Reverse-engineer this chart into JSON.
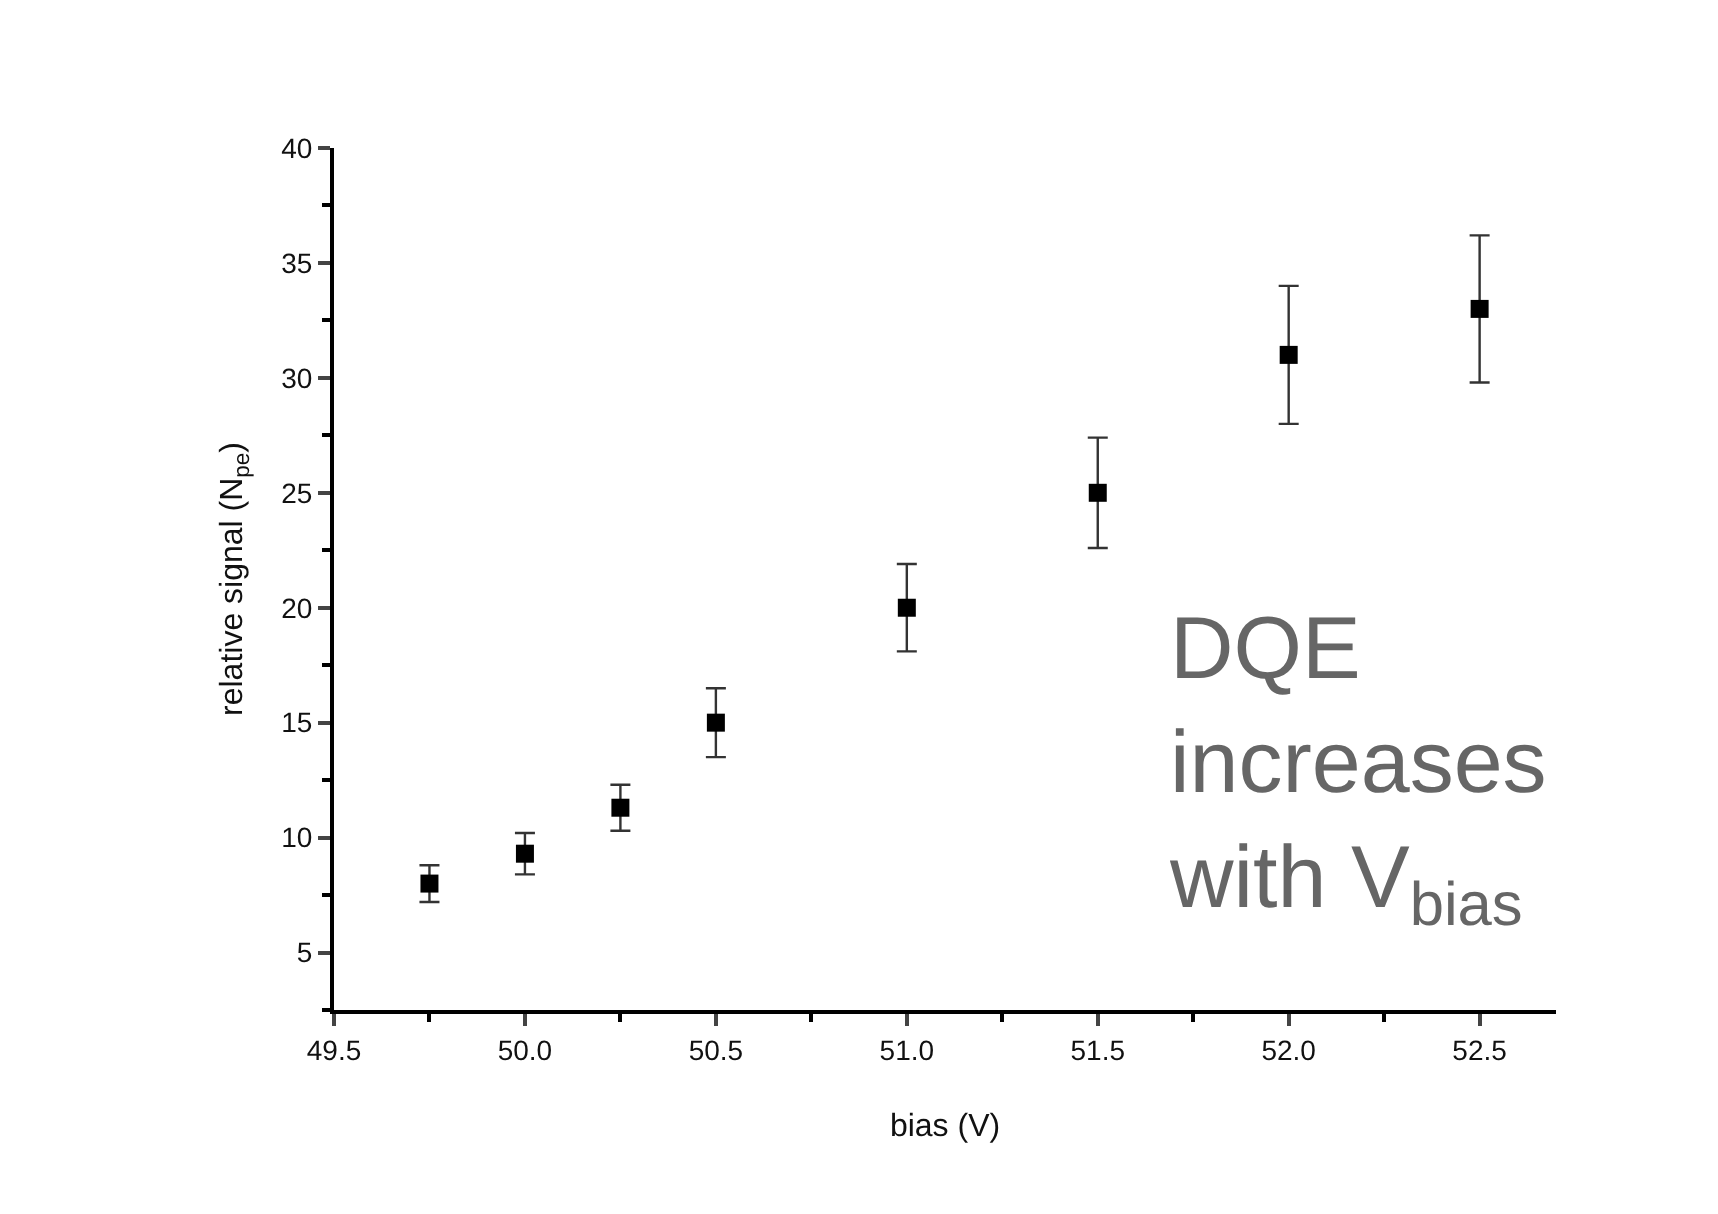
{
  "chart_data": {
    "type": "scatter",
    "xlabel": "bias (V)",
    "ylabel": "relative signal (N$_{pe}$)",
    "x": [
      49.75,
      50.0,
      50.25,
      50.5,
      51.0,
      51.5,
      52.0,
      52.5
    ],
    "series": [
      {
        "color": "#000000",
        "values": [
          8.0,
          9.3,
          11.3,
          15.0,
          20.0,
          25.0,
          31.0,
          33.0
        ],
        "errors": [
          0.8,
          0.9,
          1.0,
          1.5,
          1.9,
          2.4,
          3.0,
          3.2
        ]
      }
    ],
    "xlim": [
      49.5,
      52.7
    ],
    "xticks": [
      49.5,
      {
        "value": 50,
        "label": "50.0"
      },
      50.5,
      {
        "value": 51,
        "label": "51.0"
      },
      51.5,
      {
        "value": 52,
        "label": "52.0"
      },
      52.5
    ],
    "ylim": [
      2.5,
      40
    ],
    "yticks": [
      5,
      10,
      15,
      20,
      25,
      30,
      35,
      40
    ],
    "marker": "square",
    "annotations": [
      "DQE\nincreases\nwith V$_{bias}$"
    ]
  }
}
